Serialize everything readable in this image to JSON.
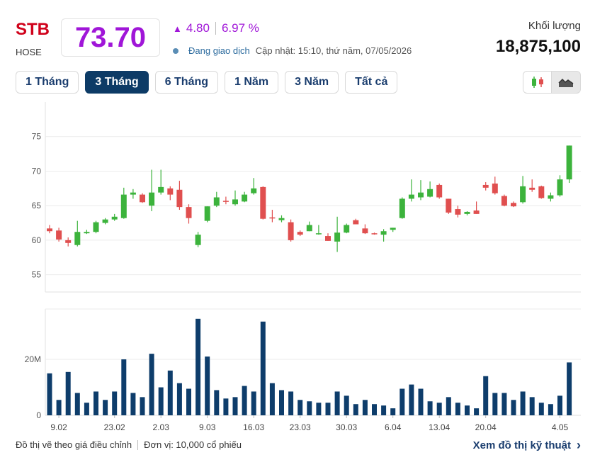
{
  "header": {
    "ticker": "STB",
    "exchange": "HOSE",
    "price": "73.70",
    "change_abs": "4.80",
    "change_pct": "6.97 %",
    "status": "Đang giao dịch",
    "updated": "Cập nhật: 15:10, thứ năm, 07/05/2026",
    "volume_label": "Khối lượng",
    "volume_value": "18,875,100"
  },
  "tabs": [
    {
      "label": "1 Tháng",
      "active": false
    },
    {
      "label": "3 Tháng",
      "active": true
    },
    {
      "label": "6 Tháng",
      "active": false
    },
    {
      "label": "1 Năm",
      "active": false
    },
    {
      "label": "3 Năm",
      "active": false
    },
    {
      "label": "Tất cả",
      "active": false
    }
  ],
  "chart_type_buttons": [
    {
      "name": "candlestick-icon",
      "active": false
    },
    {
      "name": "area-chart-icon",
      "active": true
    }
  ],
  "footer": {
    "note": "Đồ thị vẽ theo giá điều chỉnh",
    "unit": "Đơn vị: 10,000 cổ phiếu",
    "link": "Xem đồ thị kỹ thuật"
  },
  "colors": {
    "up": "#3cb33c",
    "down": "#e04f4f",
    "volume": "#0e3d6b",
    "accent": "#a016d8",
    "ticker": "#d0021b"
  },
  "chart_data": {
    "type": "candlestick",
    "price_axis": {
      "ticks": [
        55,
        60,
        65,
        70,
        75
      ],
      "ylim": [
        52.5,
        80
      ]
    },
    "volume_axis": {
      "ticks": [
        0,
        20
      ],
      "tick_labels": [
        "0",
        "20M"
      ],
      "ylim": [
        0,
        38
      ]
    },
    "x_tick_labels": [
      "9.02",
      "23.02",
      "2.03",
      "9.03",
      "16.03",
      "23.03",
      "30.03",
      "6.04",
      "13.04",
      "20.04",
      "4.05"
    ],
    "x_tick_index": [
      1,
      7,
      12,
      17,
      22,
      27,
      32,
      37,
      42,
      47,
      55
    ],
    "candles": [
      {
        "o": 61.7,
        "h": 62.2,
        "l": 61.0,
        "c": 61.3,
        "v": 15
      },
      {
        "o": 61.4,
        "h": 61.8,
        "l": 59.8,
        "c": 60.1,
        "v": 5.5
      },
      {
        "o": 60.0,
        "h": 60.4,
        "l": 59.1,
        "c": 59.6,
        "v": 15.5
      },
      {
        "o": 59.3,
        "h": 62.8,
        "l": 59.1,
        "c": 61.2,
        "v": 8
      },
      {
        "o": 61.0,
        "h": 61.5,
        "l": 60.9,
        "c": 61.2,
        "v": 4.5
      },
      {
        "o": 61.2,
        "h": 62.8,
        "l": 61.0,
        "c": 62.6,
        "v": 8.5
      },
      {
        "o": 62.5,
        "h": 63.2,
        "l": 62.3,
        "c": 63.0,
        "v": 5.5
      },
      {
        "o": 63.0,
        "h": 63.8,
        "l": 62.8,
        "c": 63.4,
        "v": 8.5
      },
      {
        "o": 63.2,
        "h": 67.6,
        "l": 63.1,
        "c": 66.6,
        "v": 20
      },
      {
        "o": 66.6,
        "h": 67.4,
        "l": 66.0,
        "c": 66.9,
        "v": 8
      },
      {
        "o": 66.6,
        "h": 66.8,
        "l": 65.4,
        "c": 65.5,
        "v": 6.5
      },
      {
        "o": 65.0,
        "h": 70.2,
        "l": 64.2,
        "c": 66.9,
        "v": 22
      },
      {
        "o": 66.9,
        "h": 70.2,
        "l": 66.6,
        "c": 67.7,
        "v": 10
      },
      {
        "o": 67.5,
        "h": 67.8,
        "l": 65.8,
        "c": 66.6,
        "v": 16
      },
      {
        "o": 67.3,
        "h": 68.6,
        "l": 64.4,
        "c": 64.8,
        "v": 11.5
      },
      {
        "o": 64.8,
        "h": 65.2,
        "l": 62.4,
        "c": 63.2,
        "v": 9.5
      },
      {
        "o": 59.3,
        "h": 61.2,
        "l": 59.0,
        "c": 60.8,
        "v": 34.5
      },
      {
        "o": 62.8,
        "h": 64.9,
        "l": 62.6,
        "c": 64.9,
        "v": 21
      },
      {
        "o": 65.0,
        "h": 67.0,
        "l": 64.8,
        "c": 66.2,
        "v": 9
      },
      {
        "o": 65.7,
        "h": 66.3,
        "l": 65.2,
        "c": 65.6,
        "v": 6
      },
      {
        "o": 65.2,
        "h": 67.2,
        "l": 65.0,
        "c": 65.9,
        "v": 6.5
      },
      {
        "o": 65.6,
        "h": 67.0,
        "l": 65.5,
        "c": 66.6,
        "v": 10.5
      },
      {
        "o": 66.8,
        "h": 69.0,
        "l": 66.6,
        "c": 67.5,
        "v": 8.5
      },
      {
        "o": 67.7,
        "h": 67.8,
        "l": 63.0,
        "c": 63.1,
        "v": 33.5
      },
      {
        "o": 63.3,
        "h": 64.4,
        "l": 62.6,
        "c": 63.2,
        "v": 11.5
      },
      {
        "o": 62.9,
        "h": 63.6,
        "l": 62.6,
        "c": 63.2,
        "v": 9
      },
      {
        "o": 62.6,
        "h": 63.0,
        "l": 59.8,
        "c": 60.0,
        "v": 8.5
      },
      {
        "o": 61.2,
        "h": 61.4,
        "l": 60.6,
        "c": 60.8,
        "v": 5.5
      },
      {
        "o": 61.3,
        "h": 62.7,
        "l": 61.3,
        "c": 62.2,
        "v": 5
      },
      {
        "o": 60.9,
        "h": 62.2,
        "l": 60.8,
        "c": 61.0,
        "v": 4.5
      },
      {
        "o": 60.6,
        "h": 61.0,
        "l": 59.9,
        "c": 59.9,
        "v": 4.5
      },
      {
        "o": 59.8,
        "h": 63.4,
        "l": 58.3,
        "c": 61.1,
        "v": 8.5
      },
      {
        "o": 61.1,
        "h": 62.4,
        "l": 61.0,
        "c": 62.2,
        "v": 7
      },
      {
        "o": 62.9,
        "h": 63.1,
        "l": 62.3,
        "c": 62.3,
        "v": 4
      },
      {
        "o": 61.7,
        "h": 62.3,
        "l": 60.9,
        "c": 61.0,
        "v": 5.5
      },
      {
        "o": 61.0,
        "h": 61.1,
        "l": 60.8,
        "c": 60.9,
        "v": 4
      },
      {
        "o": 60.8,
        "h": 61.6,
        "l": 59.8,
        "c": 61.3,
        "v": 3.5
      },
      {
        "o": 61.5,
        "h": 61.8,
        "l": 61.2,
        "c": 61.8,
        "v": 2.5
      },
      {
        "o": 63.2,
        "h": 66.2,
        "l": 63.1,
        "c": 66.0,
        "v": 9.5
      },
      {
        "o": 66.0,
        "h": 68.8,
        "l": 65.6,
        "c": 66.6,
        "v": 11
      },
      {
        "o": 66.2,
        "h": 68.7,
        "l": 65.8,
        "c": 66.9,
        "v": 9.5
      },
      {
        "o": 66.3,
        "h": 68.5,
        "l": 66.2,
        "c": 67.4,
        "v": 5
      },
      {
        "o": 68.0,
        "h": 68.2,
        "l": 66.0,
        "c": 66.2,
        "v": 4.5
      },
      {
        "o": 66.0,
        "h": 66.0,
        "l": 63.8,
        "c": 64.0,
        "v": 6.5
      },
      {
        "o": 64.5,
        "h": 65.0,
        "l": 63.3,
        "c": 63.7,
        "v": 4.5
      },
      {
        "o": 63.8,
        "h": 64.2,
        "l": 63.6,
        "c": 64.1,
        "v": 3.5
      },
      {
        "o": 64.3,
        "h": 65.6,
        "l": 63.8,
        "c": 63.8,
        "v": 2.5
      },
      {
        "o": 68.0,
        "h": 68.4,
        "l": 67.2,
        "c": 67.6,
        "v": 14
      },
      {
        "o": 68.2,
        "h": 69.2,
        "l": 66.6,
        "c": 66.8,
        "v": 8
      },
      {
        "o": 66.4,
        "h": 66.6,
        "l": 64.9,
        "c": 65.0,
        "v": 8
      },
      {
        "o": 65.4,
        "h": 65.6,
        "l": 64.8,
        "c": 64.9,
        "v": 5.5
      },
      {
        "o": 65.5,
        "h": 69.3,
        "l": 65.3,
        "c": 67.8,
        "v": 8.5
      },
      {
        "o": 67.6,
        "h": 68.8,
        "l": 67.0,
        "c": 67.3,
        "v": 6.5
      },
      {
        "o": 67.8,
        "h": 67.9,
        "l": 66.0,
        "c": 66.1,
        "v": 4.5
      },
      {
        "o": 66.0,
        "h": 66.9,
        "l": 65.6,
        "c": 66.5,
        "v": 4
      },
      {
        "o": 66.5,
        "h": 69.4,
        "l": 66.3,
        "c": 68.8,
        "v": 7
      },
      {
        "o": 68.8,
        "h": 73.7,
        "l": 68.3,
        "c": 73.7,
        "v": 18.9
      }
    ]
  }
}
